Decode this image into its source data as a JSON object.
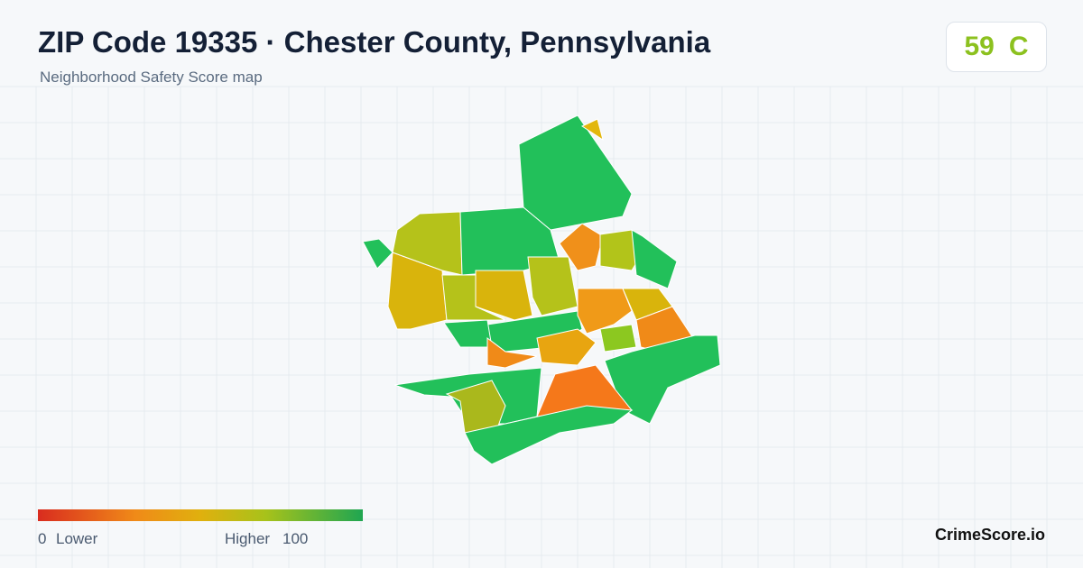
{
  "header": {
    "title": "ZIP Code 19335 · Chester County, Pennsylvania",
    "subtitle": "Neighborhood Safety Score map"
  },
  "score": {
    "value": "59",
    "grade": "C"
  },
  "legend": {
    "min": "0",
    "min_label": "Lower",
    "max_label": "Higher",
    "max": "100"
  },
  "brand": "CrimeScore.io"
}
